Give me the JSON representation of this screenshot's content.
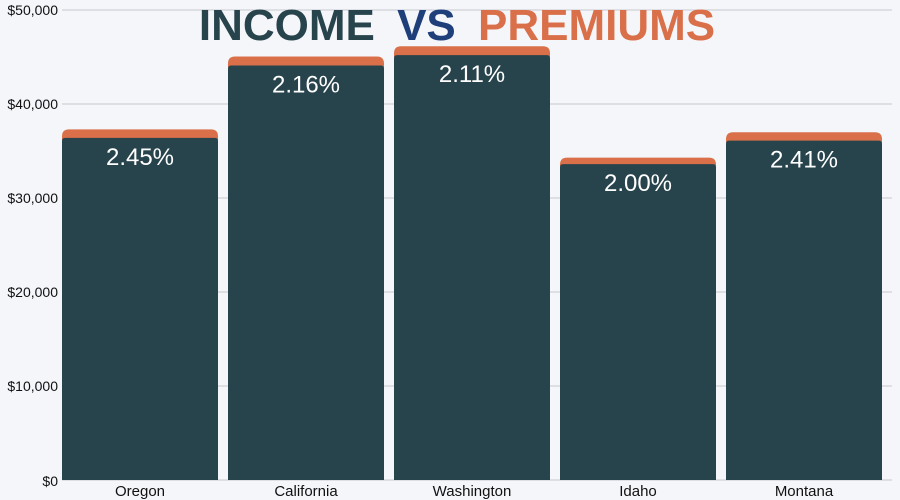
{
  "title": {
    "part1": "INCOME",
    "part2": "VS",
    "part3": "PREMIUMS"
  },
  "colors": {
    "background": "#f5f6fa",
    "income": "#27434c",
    "premium": "#d9704a",
    "title_income": "#27434c",
    "title_vs": "#1f3f7a",
    "title_premiums": "#d9704a",
    "grid": "#c8c8d0"
  },
  "chart_data": {
    "type": "bar",
    "stacked": true,
    "categories": [
      "Oregon",
      "California",
      "Washington",
      "Idaho",
      "Montana"
    ],
    "series": [
      {
        "values": [
          36400,
          44100,
          45200,
          33600,
          36100
        ]
      },
      {
        "values": [
          900,
          950,
          950,
          700,
          900
        ]
      }
    ],
    "data_labels": [
      "2.45%",
      "2.16%",
      "2.11%",
      "2.00%",
      "2.41%"
    ],
    "ylim": [
      0,
      50000
    ],
    "yticks": [
      0,
      10000,
      20000,
      30000,
      40000,
      50000
    ],
    "ytick_labels": [
      "$0",
      "$10,000",
      "$20,000",
      "$30,000",
      "$40,000",
      "$50,000"
    ],
    "grid": true,
    "legend": "none"
  }
}
